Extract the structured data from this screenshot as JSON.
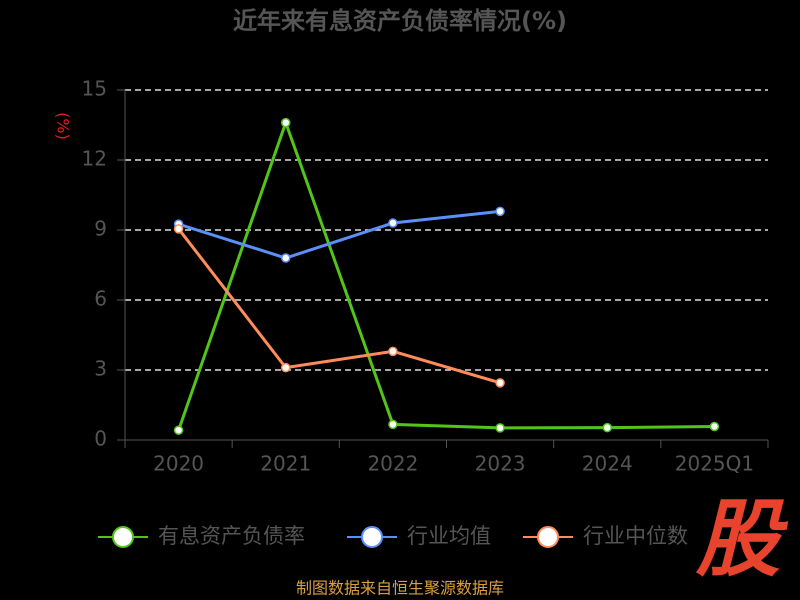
{
  "chart_data": {
    "type": "line",
    "title": "近年来有息资产负债率情况(%)",
    "y_label": "(%)",
    "categories": [
      "2020",
      "2021",
      "2022",
      "2023",
      "2024",
      "2025Q1"
    ],
    "series": [
      {
        "name": "有息资产负债率",
        "color": "#52c41a",
        "values": [
          0.42,
          13.6,
          0.67,
          0.52,
          0.53,
          0.58
        ]
      },
      {
        "name": "行业均值",
        "color": "#5b8ff9",
        "values": [
          9.25,
          7.8,
          9.3,
          9.8,
          null,
          null
        ]
      },
      {
        "name": "行业中位数",
        "color": "#ff8c5a",
        "values": [
          9.05,
          3.1,
          3.8,
          2.45,
          null,
          null
        ]
      }
    ],
    "ylim": [
      0,
      15
    ],
    "yticks": [
      0,
      3,
      6,
      9,
      12,
      15
    ],
    "grid": true,
    "legend": "bottom",
    "source": "制图数据来自恒生聚源数据库",
    "logo": "股"
  }
}
